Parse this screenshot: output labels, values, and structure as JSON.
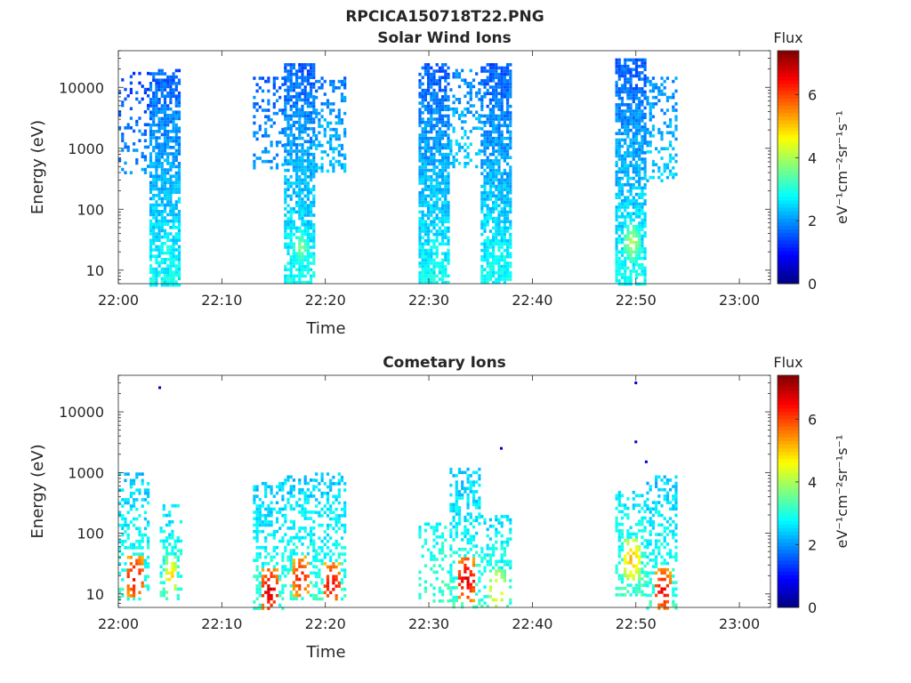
{
  "title": "RPCICA150718T22.PNG",
  "chart_data": [
    {
      "type": "heatmap",
      "title": "Solar Wind Ions",
      "xlabel": "Time",
      "ylabel": "Energy (eV)",
      "x_ticks": [
        "22:00",
        "22:10",
        "22:20",
        "22:30",
        "22:40",
        "22:50",
        "23:00"
      ],
      "x_range": [
        "22:00",
        "23:03"
      ],
      "y_scale": "log",
      "y_ticks": [
        "10",
        "100",
        "1000",
        "10000"
      ],
      "y_range": [
        6,
        40000
      ],
      "colorbar": {
        "title": "Flux",
        "label": "eV⁻¹cm⁻²sr⁻¹s⁻¹",
        "ticks": [
          "0",
          "2",
          "4",
          "6"
        ],
        "range": [
          0,
          7.4
        ]
      },
      "bursts": [
        {
          "t_start": "22:00",
          "t_end": "22:03",
          "e_min": 400,
          "e_max": 18000,
          "flux": 1.4,
          "density": 0.25
        },
        {
          "t_start": "22:03",
          "t_end": "22:06",
          "e_min": 6,
          "e_max": 20000,
          "flux": 1.6,
          "density": 0.75,
          "core_energy": 25,
          "core_flux": 3.3
        },
        {
          "t_start": "22:13",
          "t_end": "22:16",
          "e_min": 500,
          "e_max": 15000,
          "flux": 1.6,
          "density": 0.3
        },
        {
          "t_start": "22:16",
          "t_end": "22:19",
          "e_min": 6,
          "e_max": 25000,
          "flux": 1.6,
          "density": 0.75,
          "core_energy": 25,
          "core_flux": 3.8
        },
        {
          "t_start": "22:19",
          "t_end": "22:22",
          "e_min": 400,
          "e_max": 15000,
          "flux": 1.8,
          "density": 0.35
        },
        {
          "t_start": "22:29",
          "t_end": "22:32",
          "e_min": 6,
          "e_max": 25000,
          "flux": 1.6,
          "density": 0.75,
          "core_energy": 25,
          "core_flux": 3.1
        },
        {
          "t_start": "22:32",
          "t_end": "22:35",
          "e_min": 500,
          "e_max": 20000,
          "flux": 1.9,
          "density": 0.3
        },
        {
          "t_start": "22:35",
          "t_end": "22:38",
          "e_min": 6,
          "e_max": 25000,
          "flux": 1.6,
          "density": 0.75,
          "core_energy": 20,
          "core_flux": 3.2
        },
        {
          "t_start": "22:48",
          "t_end": "22:51",
          "e_min": 6,
          "e_max": 30000,
          "flux": 1.6,
          "density": 0.75,
          "core_energy": 30,
          "core_flux": 4.2
        },
        {
          "t_start": "22:51",
          "t_end": "22:54",
          "e_min": 300,
          "e_max": 15000,
          "flux": 1.9,
          "density": 0.3
        }
      ]
    },
    {
      "type": "heatmap",
      "title": "Cometary Ions",
      "xlabel": "Time",
      "ylabel": "Energy (eV)",
      "x_ticks": [
        "22:00",
        "22:10",
        "22:20",
        "22:30",
        "22:40",
        "22:50",
        "23:00"
      ],
      "x_range": [
        "22:00",
        "23:03"
      ],
      "y_scale": "log",
      "y_ticks": [
        "10",
        "100",
        "1000",
        "10000"
      ],
      "y_range": [
        6,
        40000
      ],
      "colorbar": {
        "title": "Flux",
        "label": "eV⁻¹cm⁻²sr⁻¹s⁻¹",
        "ticks": [
          "0",
          "2",
          "4",
          "6"
        ],
        "range": [
          0,
          7.4
        ]
      },
      "bursts": [
        {
          "t_start": "22:00",
          "t_end": "22:03",
          "e_min": 8,
          "e_max": 1000,
          "flux": 2.4,
          "density": 0.4,
          "core_energy": 20,
          "core_flux": 6.8
        },
        {
          "t_start": "22:04",
          "t_end": "22:06",
          "e_min": 8,
          "e_max": 300,
          "flux": 2.6,
          "density": 0.4,
          "core_energy": 20,
          "core_flux": 5.2
        },
        {
          "t_start": "22:13",
          "t_end": "22:16",
          "e_min": 6,
          "e_max": 700,
          "flux": 2.4,
          "density": 0.4,
          "core_energy": 12,
          "core_flux": 7.0
        },
        {
          "t_start": "22:16",
          "t_end": "22:19",
          "e_min": 8,
          "e_max": 900,
          "flux": 2.4,
          "density": 0.4,
          "core_energy": 20,
          "core_flux": 6.6
        },
        {
          "t_start": "22:19",
          "t_end": "22:22",
          "e_min": 8,
          "e_max": 1000,
          "flux": 2.4,
          "density": 0.4,
          "core_energy": 15,
          "core_flux": 6.8
        },
        {
          "t_start": "22:29",
          "t_end": "22:32",
          "e_min": 8,
          "e_max": 150,
          "flux": 2.8,
          "density": 0.3
        },
        {
          "t_start": "22:32",
          "t_end": "22:35",
          "e_min": 6,
          "e_max": 1200,
          "flux": 2.4,
          "density": 0.45,
          "core_energy": 18,
          "core_flux": 7.0
        },
        {
          "t_start": "22:35",
          "t_end": "22:38",
          "e_min": 6,
          "e_max": 200,
          "flux": 2.6,
          "density": 0.35,
          "core_energy": 12,
          "core_flux": 5.0
        },
        {
          "t_start": "22:48",
          "t_end": "22:51",
          "e_min": 10,
          "e_max": 500,
          "flux": 2.6,
          "density": 0.45,
          "core_energy": 40,
          "core_flux": 5.4
        },
        {
          "t_start": "22:51",
          "t_end": "22:54",
          "e_min": 6,
          "e_max": 900,
          "flux": 2.4,
          "density": 0.4,
          "core_energy": 12,
          "core_flux": 6.8
        }
      ],
      "outliers": [
        {
          "t": "22:04",
          "e": 25000
        },
        {
          "t": "22:37",
          "e": 2500
        },
        {
          "t": "22:50",
          "e": 30000
        },
        {
          "t": "22:50",
          "e": 3200
        },
        {
          "t": "22:51",
          "e": 1500
        }
      ]
    }
  ]
}
